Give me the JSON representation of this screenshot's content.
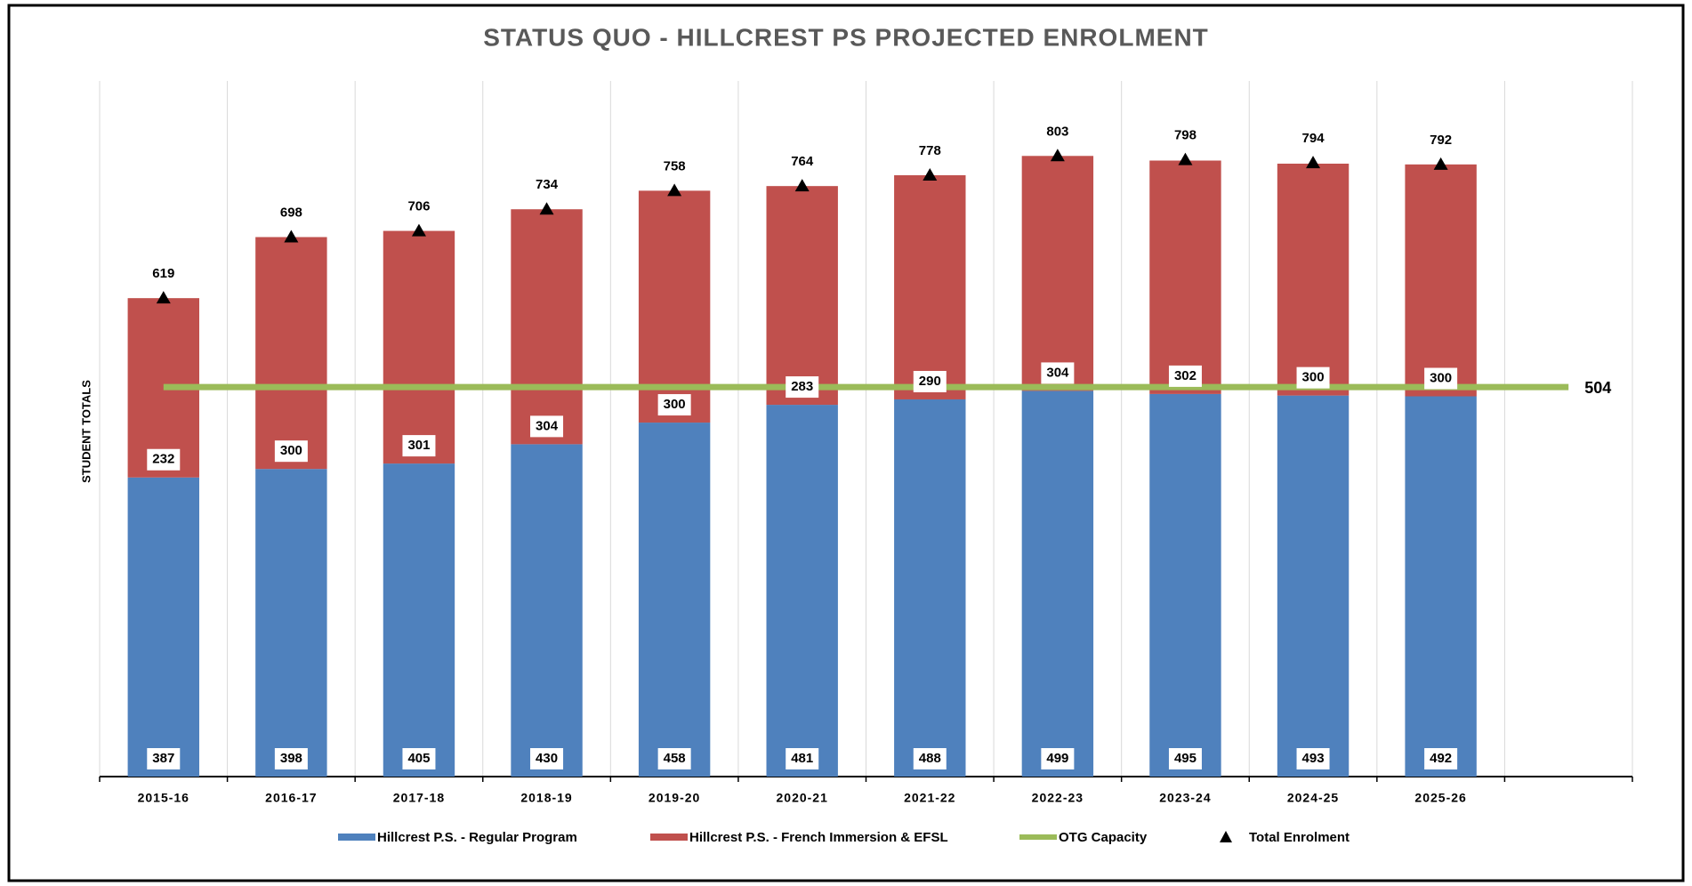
{
  "chart_data": {
    "type": "bar",
    "stacked": true,
    "title": "STATUS QUO - HILLCREST PS PROJECTED ENROLMENT",
    "y_label": "STUDENT TOTALS",
    "categories": [
      "2015-16",
      "2016-17",
      "2017-18",
      "2018-19",
      "2019-20",
      "2020-21",
      "2021-22",
      "2022-23",
      "2023-24",
      "2024-25",
      "2025-26",
      null
    ],
    "series": [
      {
        "name": "Hillcrest P.S. - Regular Program",
        "type": "bar",
        "color": "#4f81bd",
        "values": [
          387,
          398,
          405,
          430,
          458,
          481,
          488,
          499,
          495,
          493,
          492,
          null
        ]
      },
      {
        "name": "Hillcrest P.S. - French Immersion & EFSL",
        "type": "bar",
        "color": "#c0504d",
        "values": [
          232,
          300,
          301,
          304,
          300,
          283,
          290,
          304,
          302,
          300,
          300,
          null
        ]
      },
      {
        "name": "OTG Capacity",
        "type": "line",
        "color": "#9bbb59",
        "values": [
          504,
          504,
          504,
          504,
          504,
          504,
          504,
          504,
          504,
          504,
          504,
          504
        ]
      },
      {
        "name": "Total Enrolment",
        "type": "scatter",
        "color": "#000000",
        "values": [
          619,
          698,
          706,
          734,
          758,
          764,
          778,
          803,
          798,
          794,
          792,
          null
        ]
      }
    ],
    "ylim": [
      0,
      900
    ],
    "grid": "vertical",
    "legend": "bottom"
  }
}
